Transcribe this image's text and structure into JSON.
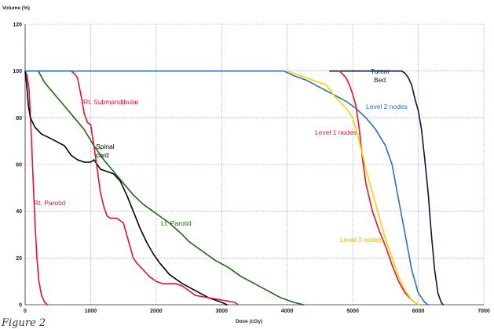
{
  "chart_data": {
    "type": "line",
    "title": "",
    "xlabel": "Dose (cGy)",
    "ylabel": "Volume (%)",
    "xlim": [
      0,
      7000
    ],
    "ylim": [
      0,
      120
    ],
    "x_ticks": [
      "0",
      "1000",
      "2000",
      "3000",
      "4000",
      "5000",
      "6000",
      "7000"
    ],
    "y_ticks": [
      "0",
      "20",
      "40",
      "60",
      "80",
      "100",
      "120"
    ],
    "grid": true,
    "series": [
      {
        "name": "Rt. Parotid",
        "color": "#e8102a",
        "points": [
          [
            0,
            100
          ],
          [
            30,
            98
          ],
          [
            60,
            92
          ],
          [
            90,
            75
          ],
          [
            120,
            55
          ],
          [
            150,
            35
          ],
          [
            180,
            20
          ],
          [
            210,
            10
          ],
          [
            250,
            4
          ],
          [
            300,
            1
          ],
          [
            340,
            0
          ]
        ]
      },
      {
        "name": "Spinal cord",
        "color": "#000000",
        "points": [
          [
            0,
            100
          ],
          [
            20,
            95
          ],
          [
            50,
            85
          ],
          [
            80,
            80
          ],
          [
            150,
            76
          ],
          [
            250,
            73
          ],
          [
            400,
            71
          ],
          [
            600,
            68
          ],
          [
            700,
            64
          ],
          [
            800,
            62
          ],
          [
            900,
            61
          ],
          [
            1000,
            61
          ],
          [
            1050,
            62
          ],
          [
            1150,
            58
          ],
          [
            1250,
            57
          ],
          [
            1350,
            56
          ],
          [
            1450,
            53
          ],
          [
            1550,
            47
          ],
          [
            1650,
            40
          ],
          [
            1750,
            33
          ],
          [
            1850,
            27
          ],
          [
            1950,
            22
          ],
          [
            2050,
            18
          ],
          [
            2200,
            13
          ],
          [
            2400,
            9
          ],
          [
            2600,
            6
          ],
          [
            2800,
            3
          ],
          [
            2900,
            2
          ],
          [
            3000,
            1
          ],
          [
            3080,
            0
          ]
        ]
      },
      {
        "name": "Rt. Submandibular",
        "color": "#e8102a",
        "points": [
          [
            0,
            100
          ],
          [
            700,
            100
          ],
          [
            750,
            99
          ],
          [
            800,
            97
          ],
          [
            850,
            90
          ],
          [
            900,
            82
          ],
          [
            950,
            78
          ],
          [
            1000,
            77
          ],
          [
            1050,
            68
          ],
          [
            1100,
            58
          ],
          [
            1150,
            48
          ],
          [
            1200,
            42
          ],
          [
            1250,
            38
          ],
          [
            1300,
            37
          ],
          [
            1400,
            37
          ],
          [
            1500,
            35
          ],
          [
            1550,
            30
          ],
          [
            1600,
            25
          ],
          [
            1650,
            20
          ],
          [
            1700,
            18
          ],
          [
            1800,
            15
          ],
          [
            1900,
            12
          ],
          [
            2000,
            10
          ],
          [
            2100,
            9
          ],
          [
            2300,
            9
          ],
          [
            2400,
            8
          ],
          [
            2600,
            4
          ],
          [
            2800,
            3
          ],
          [
            3000,
            2
          ],
          [
            3200,
            1
          ],
          [
            3250,
            0
          ]
        ]
      },
      {
        "name": "Lt. Parotid",
        "color": "#1a6b10",
        "points": [
          [
            200,
            100
          ],
          [
            300,
            95
          ],
          [
            450,
            90
          ],
          [
            600,
            85
          ],
          [
            750,
            80
          ],
          [
            900,
            75
          ],
          [
            1050,
            68
          ],
          [
            1200,
            62
          ],
          [
            1350,
            57
          ],
          [
            1500,
            52
          ],
          [
            1650,
            47
          ],
          [
            1800,
            43
          ],
          [
            1900,
            41
          ],
          [
            2000,
            39
          ],
          [
            2200,
            35
          ],
          [
            2400,
            30
          ],
          [
            2500,
            27
          ],
          [
            2700,
            23
          ],
          [
            2900,
            19
          ],
          [
            3100,
            16
          ],
          [
            3300,
            12
          ],
          [
            3500,
            9
          ],
          [
            3700,
            6
          ],
          [
            3900,
            3
          ],
          [
            4100,
            1
          ],
          [
            4250,
            0
          ]
        ]
      },
      {
        "name": "Tumor Bed",
        "color": "#0a1640",
        "points": [
          [
            4650,
            100
          ],
          [
            5750,
            100
          ],
          [
            5800,
            99
          ],
          [
            5850,
            97
          ],
          [
            5900,
            94
          ],
          [
            5950,
            88
          ],
          [
            6000,
            83
          ],
          [
            6050,
            75
          ],
          [
            6100,
            62
          ],
          [
            6150,
            48
          ],
          [
            6200,
            30
          ],
          [
            6250,
            15
          ],
          [
            6300,
            5
          ],
          [
            6350,
            1
          ],
          [
            6380,
            0
          ]
        ]
      },
      {
        "name": "Level 2 nodes",
        "color": "#2a6fc0",
        "points": [
          [
            0,
            100
          ],
          [
            3950,
            100
          ],
          [
            4100,
            98
          ],
          [
            4300,
            96
          ],
          [
            4500,
            93
          ],
          [
            4700,
            90
          ],
          [
            4900,
            87
          ],
          [
            5050,
            84
          ],
          [
            5200,
            80
          ],
          [
            5350,
            75
          ],
          [
            5500,
            68
          ],
          [
            5600,
            60
          ],
          [
            5700,
            45
          ],
          [
            5800,
            30
          ],
          [
            5900,
            15
          ],
          [
            6000,
            5
          ],
          [
            6100,
            1
          ],
          [
            6150,
            0
          ]
        ]
      },
      {
        "name": "Level 1 nodes",
        "color": "#e8102a",
        "points": [
          [
            4800,
            100
          ],
          [
            4900,
            97
          ],
          [
            4950,
            94
          ],
          [
            5000,
            90
          ],
          [
            5050,
            85
          ],
          [
            5100,
            75
          ],
          [
            5150,
            62
          ],
          [
            5200,
            52
          ],
          [
            5300,
            40
          ],
          [
            5400,
            32
          ],
          [
            5500,
            25
          ],
          [
            5600,
            17
          ],
          [
            5700,
            10
          ],
          [
            5800,
            5
          ],
          [
            5900,
            2
          ],
          [
            6000,
            0
          ]
        ]
      },
      {
        "name": "Level 3 nodes",
        "color": "#f2d400",
        "points": [
          [
            4000,
            100
          ],
          [
            4200,
            98
          ],
          [
            4400,
            96
          ],
          [
            4600,
            94
          ],
          [
            4700,
            90
          ],
          [
            4800,
            87
          ],
          [
            4900,
            84
          ],
          [
            5000,
            80
          ],
          [
            5100,
            70
          ],
          [
            5200,
            58
          ],
          [
            5300,
            48
          ],
          [
            5400,
            38
          ],
          [
            5500,
            28
          ],
          [
            5600,
            20
          ],
          [
            5700,
            12
          ],
          [
            5800,
            6
          ],
          [
            5900,
            2
          ],
          [
            6000,
            0
          ]
        ]
      }
    ],
    "annotations": [
      {
        "text": "Rt. Submandibular",
        "color": "#e8102a"
      },
      {
        "text": "Spinal",
        "color": "#000000"
      },
      {
        "text": "cord",
        "color": "#000000"
      },
      {
        "text": "Rt. Parotid",
        "color": "#e8102a"
      },
      {
        "text": "Lt. Parotid",
        "color": "#1a6b10"
      },
      {
        "text": "Tumor",
        "color": "#0a1640"
      },
      {
        "text": "Bed",
        "color": "#0a1640"
      },
      {
        "text": "Level 2 nodes",
        "color": "#2a6fc0"
      },
      {
        "text": "Level 1 nodes",
        "color": "#e8102a"
      },
      {
        "text": "Level 3 nodes",
        "color": "#d4b400"
      }
    ],
    "caption": "Figure 2"
  }
}
